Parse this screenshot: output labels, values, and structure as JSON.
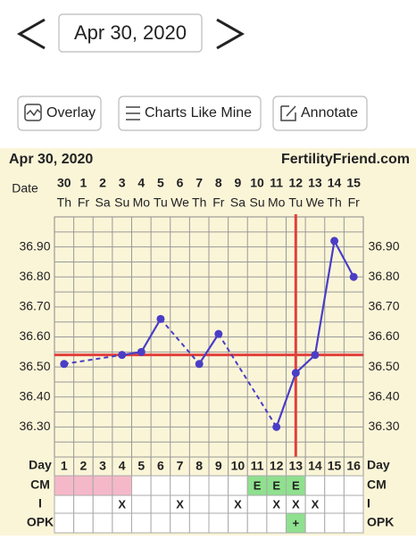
{
  "nav": {
    "date": "Apr 30, 2020"
  },
  "buttons": [
    "Overlay",
    "Charts Like Mine",
    "Annotate"
  ],
  "chart_data": {
    "type": "line",
    "title": "Apr 30, 2020",
    "site": "FertilityFriend.com",
    "date_label": "Date",
    "dates": [
      "30",
      "1",
      "2",
      "3",
      "4",
      "5",
      "6",
      "7",
      "8",
      "9",
      "10",
      "11",
      "12",
      "13",
      "14",
      "15"
    ],
    "weekdays": [
      "Th",
      "Fr",
      "Sa",
      "Su",
      "Mo",
      "Tu",
      "We",
      "Th",
      "Fr",
      "Sa",
      "Su",
      "Mo",
      "Tu",
      "We",
      "Th",
      "Fr"
    ],
    "day_label": "Day",
    "categories": [
      "1",
      "2",
      "3",
      "4",
      "5",
      "6",
      "7",
      "8",
      "9",
      "10",
      "11",
      "12",
      "13",
      "14",
      "15",
      "16"
    ],
    "series": [
      {
        "color": "#4a3ec6",
        "values": [
          36.51,
          null,
          null,
          36.54,
          36.55,
          36.66,
          null,
          36.51,
          36.61,
          null,
          null,
          36.3,
          36.48,
          36.54,
          36.92,
          36.8
        ]
      }
    ],
    "ylim": [
      36.2,
      37.0
    ],
    "yticks": [
      {
        "value": 36.3,
        "label": "36.30"
      },
      {
        "value": 36.4,
        "label": "36.40"
      },
      {
        "value": 36.5,
        "label": "36.50"
      },
      {
        "value": 36.6,
        "label": "36.60"
      },
      {
        "value": 36.7,
        "label": "36.70"
      },
      {
        "value": 36.8,
        "label": "36.80"
      },
      {
        "value": 36.9,
        "label": "36.90"
      }
    ],
    "grid": true,
    "coverline": 36.54,
    "coverline_color": "#e0403c",
    "ovulation_day": 13,
    "rows": [
      {
        "label": "CM",
        "cells": [
          null,
          null,
          null,
          null,
          null,
          null,
          null,
          null,
          null,
          null,
          "E",
          "E",
          "E",
          null,
          null,
          null
        ],
        "colors": [
          "#f5b8c8",
          "#f5b8c8",
          "#f5b8c8",
          "#f5b8c8",
          "#fff",
          "#fff",
          "#fff",
          "#fff",
          "#fff",
          "#fff",
          "#8fe08f",
          "#8fe08f",
          "#8fe08f",
          "#fff",
          "#fff",
          "#fff"
        ]
      },
      {
        "label": "I",
        "cells": [
          null,
          null,
          null,
          "X",
          null,
          null,
          "X",
          null,
          null,
          "X",
          null,
          "X",
          "X",
          "X",
          null,
          null
        ],
        "colors": [
          "#fff",
          "#fff",
          "#fff",
          "#fff",
          "#fff",
          "#fff",
          "#fff",
          "#fff",
          "#fff",
          "#fff",
          "#fff",
          "#fff",
          "#fff",
          "#fff",
          "#fff",
          "#fff"
        ]
      },
      {
        "label": "OPK",
        "cells": [
          null,
          null,
          null,
          null,
          null,
          null,
          null,
          null,
          null,
          null,
          null,
          null,
          "+",
          null,
          null,
          null
        ],
        "colors": [
          "#fff",
          "#fff",
          "#fff",
          "#fff",
          "#fff",
          "#fff",
          "#fff",
          "#fff",
          "#fff",
          "#fff",
          "#fff",
          "#fff",
          "#8fe08f",
          "#fff",
          "#fff",
          "#fff"
        ]
      }
    ]
  }
}
